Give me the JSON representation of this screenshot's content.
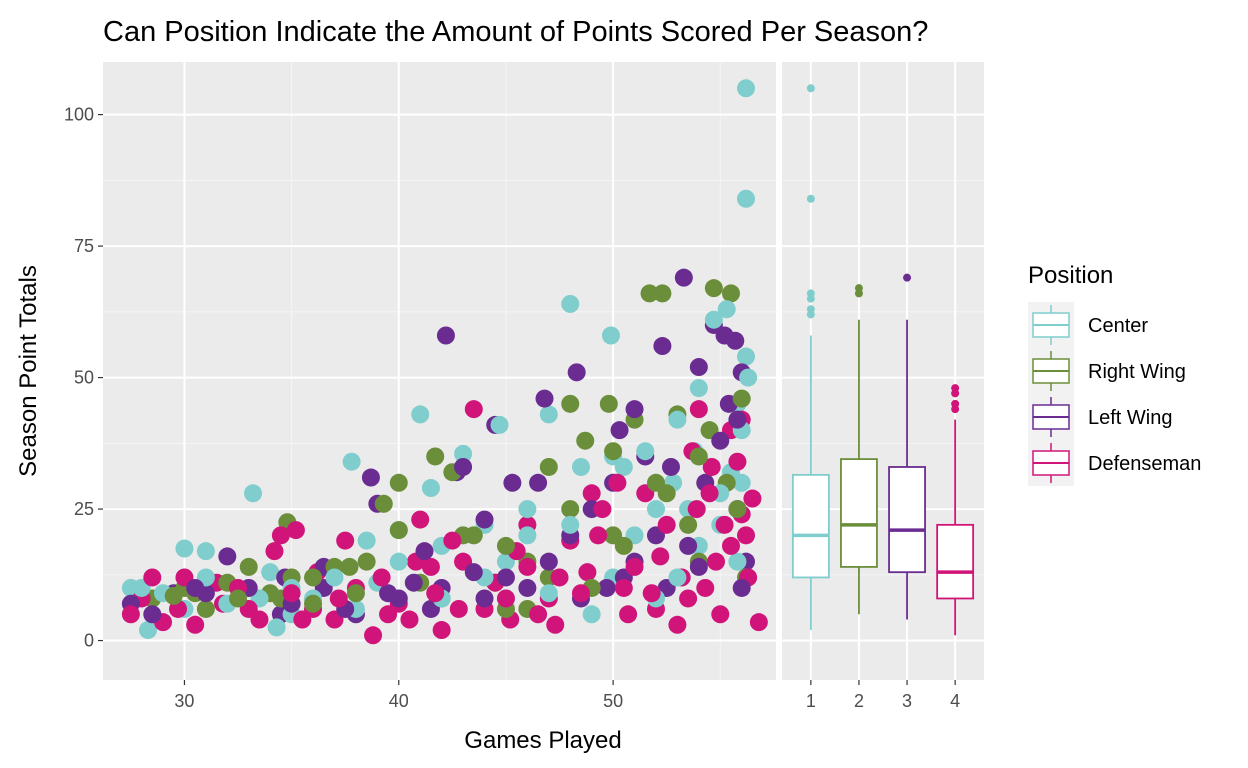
{
  "chart_data": {
    "type": "scatter",
    "title": "Can Position Indicate the Amount of Points Scored Per Season?",
    "xlabel": "Games Played",
    "ylabel": "Season Point Totals",
    "xlim": [
      26.2,
      57.6
    ],
    "ylim": [
      -7.5,
      110
    ],
    "x_ticks": [
      30,
      40,
      50
    ],
    "y_ticks": [
      0,
      25,
      50,
      75,
      100
    ],
    "grid": true,
    "legend": {
      "title": "Position",
      "placement": "right",
      "items": [
        {
          "label": "Center",
          "color": "#7FCDCD"
        },
        {
          "label": "Right Wing",
          "color": "#6B8E3A"
        },
        {
          "label": "Left Wing",
          "color": "#6A2C91"
        },
        {
          "label": "Defenseman",
          "color": "#D0147A"
        }
      ]
    },
    "series": [
      {
        "name": "Center",
        "color": "#7FCDCD",
        "points": [
          [
            28,
            10
          ],
          [
            28.3,
            2
          ],
          [
            30,
            17.5
          ],
          [
            31,
            17
          ],
          [
            33.2,
            28
          ],
          [
            34.3,
            2.5
          ],
          [
            34,
            13
          ],
          [
            37.8,
            34
          ],
          [
            38.5,
            19
          ],
          [
            40,
            21
          ],
          [
            41,
            43
          ],
          [
            41.5,
            29
          ],
          [
            43,
            35.5
          ],
          [
            44.7,
            41
          ],
          [
            47,
            43
          ],
          [
            48,
            64
          ],
          [
            49.9,
            58
          ],
          [
            50,
            35
          ],
          [
            50.5,
            33
          ],
          [
            51.5,
            36
          ],
          [
            52,
            25
          ],
          [
            53,
            42
          ],
          [
            53.5,
            25
          ],
          [
            54,
            48
          ],
          [
            54.7,
            61
          ],
          [
            55.3,
            63
          ],
          [
            56.2,
            105
          ],
          [
            56.2,
            84
          ],
          [
            56.2,
            54
          ],
          [
            55.8,
            45
          ],
          [
            56,
            40
          ],
          [
            55.5,
            32
          ],
          [
            55,
            28
          ],
          [
            55,
            22
          ],
          [
            54,
            18
          ],
          [
            53,
            12
          ],
          [
            52,
            8
          ],
          [
            50,
            12
          ],
          [
            48,
            22
          ],
          [
            46,
            20
          ],
          [
            45,
            8
          ],
          [
            44,
            12
          ],
          [
            42,
            18
          ],
          [
            40,
            15
          ],
          [
            38,
            6
          ],
          [
            36,
            8
          ],
          [
            35,
            10
          ],
          [
            32,
            7
          ],
          [
            30,
            6
          ],
          [
            29,
            9
          ],
          [
            27.5,
            10
          ],
          [
            45,
            15
          ],
          [
            47,
            9
          ],
          [
            49,
            5
          ],
          [
            51,
            20
          ],
          [
            55.8,
            15
          ],
          [
            56,
            30
          ],
          [
            56.3,
            50
          ],
          [
            53.8,
            36
          ],
          [
            52.8,
            30
          ],
          [
            48.5,
            33
          ],
          [
            46,
            25
          ],
          [
            44,
            22
          ],
          [
            42,
            8
          ],
          [
            39,
            11
          ],
          [
            37,
            12
          ],
          [
            35,
            5
          ],
          [
            33.5,
            8
          ],
          [
            31,
            12
          ]
        ]
      },
      {
        "name": "Right Wing",
        "color": "#6B8E3A",
        "points": [
          [
            29.5,
            8.5
          ],
          [
            30.5,
            9
          ],
          [
            31,
            6
          ],
          [
            32.5,
            8
          ],
          [
            33,
            14
          ],
          [
            34.8,
            22.5
          ],
          [
            35,
            12
          ],
          [
            37,
            14
          ],
          [
            37.7,
            14
          ],
          [
            39.3,
            26
          ],
          [
            40,
            30
          ],
          [
            41.7,
            35
          ],
          [
            42.5,
            32
          ],
          [
            43,
            20
          ],
          [
            45,
            18
          ],
          [
            46,
            15
          ],
          [
            47,
            33
          ],
          [
            48,
            45
          ],
          [
            48.7,
            38
          ],
          [
            49.8,
            45
          ],
          [
            50,
            36
          ],
          [
            51,
            42
          ],
          [
            51.7,
            66
          ],
          [
            52.3,
            66
          ],
          [
            53,
            43
          ],
          [
            54,
            35
          ],
          [
            54.7,
            67
          ],
          [
            55.5,
            66
          ],
          [
            56,
            46
          ],
          [
            55.3,
            30
          ],
          [
            54.5,
            40
          ],
          [
            53.5,
            22
          ],
          [
            52.5,
            28
          ],
          [
            50.5,
            18
          ],
          [
            49,
            10
          ],
          [
            47,
            12
          ],
          [
            45,
            6
          ],
          [
            43.5,
            20
          ],
          [
            41,
            11
          ],
          [
            38,
            9
          ],
          [
            36,
            12
          ],
          [
            34,
            9
          ],
          [
            32,
            11
          ],
          [
            28.5,
            8
          ],
          [
            55.8,
            25
          ],
          [
            56.2,
            12
          ],
          [
            54,
            15
          ],
          [
            52,
            30
          ],
          [
            50,
            20
          ],
          [
            48,
            25
          ],
          [
            46,
            6
          ],
          [
            44.5,
            11
          ],
          [
            42,
            8
          ],
          [
            40,
            21
          ],
          [
            38.5,
            15
          ],
          [
            36,
            7
          ],
          [
            34.5,
            8
          ],
          [
            30,
            10
          ]
        ]
      },
      {
        "name": "Left Wing",
        "color": "#6A2C91",
        "points": [
          [
            27.5,
            7
          ],
          [
            28.5,
            5
          ],
          [
            29.5,
            9
          ],
          [
            31,
            9
          ],
          [
            32,
            16
          ],
          [
            34.5,
            5
          ],
          [
            34.7,
            12
          ],
          [
            36.5,
            14
          ],
          [
            38.7,
            31
          ],
          [
            39,
            26
          ],
          [
            40.7,
            11
          ],
          [
            41.2,
            17
          ],
          [
            42.2,
            58
          ],
          [
            42.7,
            32
          ],
          [
            43,
            33
          ],
          [
            44,
            23
          ],
          [
            44.5,
            41
          ],
          [
            45.3,
            30
          ],
          [
            46.5,
            30
          ],
          [
            46.8,
            46
          ],
          [
            48.3,
            51
          ],
          [
            49.7,
            10
          ],
          [
            50.3,
            40
          ],
          [
            51,
            44
          ],
          [
            51.5,
            35
          ],
          [
            52.3,
            56
          ],
          [
            53.3,
            69
          ],
          [
            54,
            52
          ],
          [
            54.7,
            60
          ],
          [
            55.2,
            58
          ],
          [
            55.7,
            57
          ],
          [
            56,
            51
          ],
          [
            55.4,
            45
          ],
          [
            55.8,
            42
          ],
          [
            55,
            38
          ],
          [
            54.3,
            30
          ],
          [
            53.5,
            18
          ],
          [
            52.7,
            33
          ],
          [
            52,
            20
          ],
          [
            51,
            15
          ],
          [
            50,
            30
          ],
          [
            49,
            25
          ],
          [
            48,
            20
          ],
          [
            47,
            15
          ],
          [
            45,
            12
          ],
          [
            44,
            8
          ],
          [
            42,
            10
          ],
          [
            40,
            8
          ],
          [
            38,
            5
          ],
          [
            36.5,
            10
          ],
          [
            35,
            7
          ],
          [
            33,
            10
          ],
          [
            30.5,
            10
          ],
          [
            55.8,
            25
          ],
          [
            56.2,
            15
          ],
          [
            56,
            10
          ],
          [
            54,
            14
          ],
          [
            52.5,
            10
          ],
          [
            50.5,
            12
          ],
          [
            48.5,
            8
          ],
          [
            46,
            10
          ],
          [
            43.5,
            13
          ],
          [
            41.5,
            6
          ],
          [
            39.5,
            9
          ],
          [
            37.5,
            6
          ]
        ]
      },
      {
        "name": "Defenseman",
        "color": "#D0147A",
        "points": [
          [
            27.5,
            5
          ],
          [
            28.5,
            12
          ],
          [
            29,
            3.5
          ],
          [
            30,
            12
          ],
          [
            30.5,
            3
          ],
          [
            31.8,
            7
          ],
          [
            32.5,
            10
          ],
          [
            33.5,
            4
          ],
          [
            34.2,
            17
          ],
          [
            34.5,
            20
          ],
          [
            35.2,
            21
          ],
          [
            35.5,
            4
          ],
          [
            36,
            6
          ],
          [
            37,
            4
          ],
          [
            37.5,
            19
          ],
          [
            38,
            10
          ],
          [
            38.8,
            1
          ],
          [
            39.5,
            5
          ],
          [
            40,
            7
          ],
          [
            41,
            23
          ],
          [
            41.5,
            14
          ],
          [
            42,
            2
          ],
          [
            42.5,
            19
          ],
          [
            43.5,
            44
          ],
          [
            44,
            6
          ],
          [
            45,
            8
          ],
          [
            45.5,
            17
          ],
          [
            46,
            22
          ],
          [
            46.5,
            5
          ],
          [
            47.5,
            12
          ],
          [
            48,
            19
          ],
          [
            48.5,
            9
          ],
          [
            49,
            28
          ],
          [
            49.5,
            25
          ],
          [
            50.2,
            30
          ],
          [
            50.7,
            5
          ],
          [
            51,
            14
          ],
          [
            51.5,
            28
          ],
          [
            52,
            6
          ],
          [
            52.5,
            22
          ],
          [
            53,
            3
          ],
          [
            53.5,
            8
          ],
          [
            53.7,
            36
          ],
          [
            54,
            44
          ],
          [
            54.5,
            28
          ],
          [
            55,
            5
          ],
          [
            55.5,
            40
          ],
          [
            55.8,
            34
          ],
          [
            56,
            42
          ],
          [
            56.2,
            20
          ],
          [
            56.3,
            12
          ],
          [
            56.5,
            27
          ],
          [
            56.8,
            3.5
          ],
          [
            55.2,
            22
          ],
          [
            54.8,
            15
          ],
          [
            54.3,
            10
          ],
          [
            53.2,
            12
          ],
          [
            52.2,
            16
          ],
          [
            50.5,
            10
          ],
          [
            49.3,
            20
          ],
          [
            47,
            8
          ],
          [
            46,
            14
          ],
          [
            44.5,
            11
          ],
          [
            43,
            15
          ],
          [
            41.7,
            9
          ],
          [
            40.5,
            4
          ],
          [
            39.2,
            12
          ],
          [
            37.2,
            8
          ],
          [
            36.2,
            13
          ],
          [
            35,
            9
          ],
          [
            33,
            6
          ],
          [
            31.5,
            11
          ],
          [
            29.7,
            6
          ],
          [
            28,
            8
          ],
          [
            56,
            24
          ],
          [
            55.5,
            18
          ],
          [
            54.6,
            33
          ],
          [
            53.9,
            25
          ],
          [
            51.8,
            9
          ],
          [
            48.8,
            13
          ],
          [
            47.3,
            3
          ],
          [
            45.2,
            4
          ],
          [
            42.8,
            6
          ],
          [
            40.8,
            15
          ]
        ]
      }
    ],
    "boxplot": {
      "x_categories": [
        "1",
        "2",
        "3",
        "4"
      ],
      "boxes": [
        {
          "name": "Center",
          "color": "#7FCDCD",
          "min": 2,
          "q1": 12,
          "median": 20,
          "q3": 31.5,
          "max": 58,
          "outliers": [
            62,
            63,
            65,
            66,
            84,
            105
          ]
        },
        {
          "name": "Right Wing",
          "color": "#6B8E3A",
          "min": 5,
          "q1": 14,
          "median": 22,
          "q3": 34.5,
          "max": 61,
          "outliers": [
            66,
            67
          ]
        },
        {
          "name": "Left Wing",
          "color": "#6A2C91",
          "min": 4,
          "q1": 13,
          "median": 21,
          "q3": 33,
          "max": 61,
          "outliers": [
            69
          ]
        },
        {
          "name": "Defenseman",
          "color": "#D0147A",
          "min": 1,
          "q1": 8,
          "median": 13,
          "q3": 22,
          "max": 42,
          "outliers": [
            44,
            45,
            47,
            48
          ]
        }
      ]
    }
  }
}
